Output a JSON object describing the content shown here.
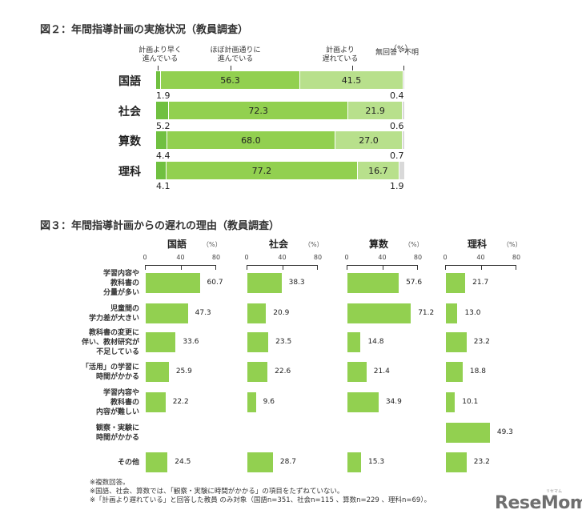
{
  "figure2": {
    "title": "図２：年間指導計画の実施状況（教員調査）",
    "unit": "（%）",
    "legend": [
      {
        "line1": "計画より早く",
        "line2": "進んでいる",
        "color": "#70c040"
      },
      {
        "line1": "ほぼ計画通りに",
        "line2": "進んでいる",
        "color": "#92d050"
      },
      {
        "line1": "計画より",
        "line2": "遅れている",
        "color": "#b8e08c"
      },
      {
        "line1": "",
        "line2": "無回答・不明",
        "color": "#d9d9d9"
      }
    ],
    "rows": [
      {
        "label": "国語",
        "values": [
          1.9,
          56.3,
          41.5,
          0.4
        ],
        "labels": [
          "1.9",
          "56.3",
          "41.5",
          "0.4"
        ]
      },
      {
        "label": "社会",
        "values": [
          5.2,
          72.3,
          21.9,
          0.6
        ],
        "labels": [
          "5.2",
          "72.3",
          "21.9",
          "0.6"
        ]
      },
      {
        "label": "算数",
        "values": [
          4.4,
          68.0,
          27.0,
          0.7
        ],
        "labels": [
          "4.4",
          "68.0",
          "27.0",
          "0.7"
        ]
      },
      {
        "label": "理科",
        "values": [
          4.1,
          77.2,
          16.7,
          1.9
        ],
        "labels": [
          "4.1",
          "77.2",
          "16.7",
          "1.9"
        ]
      }
    ]
  },
  "figure3": {
    "title": "図３：年間指導計画からの遅れの理由（教員調査）",
    "unit": "（%）",
    "ticks": [
      "0",
      "40",
      "80"
    ],
    "categories": [
      {
        "lines": [
          "学習内容や",
          "教科書の",
          "分量が多い"
        ]
      },
      {
        "lines": [
          "児童間の",
          "学力差が大きい"
        ]
      },
      {
        "lines": [
          "教科書の変更に",
          "伴い、教材研究が",
          "不足している"
        ]
      },
      {
        "lines": [
          "「活用」の学習に",
          "時間がかかる"
        ]
      },
      {
        "lines": [
          "学習内容や",
          "教科書の",
          "内容が難しい"
        ]
      },
      {
        "lines": [
          "観察・実験に",
          "時間がかかる"
        ]
      },
      {
        "lines": [
          "その他"
        ]
      }
    ],
    "panels": [
      {
        "title": "国語",
        "values": [
          60.7,
          47.3,
          33.6,
          25.9,
          22.2,
          null,
          24.5
        ],
        "labels": [
          "60.7",
          "47.3",
          "33.6",
          "25.9",
          "22.2",
          "",
          "24.5"
        ]
      },
      {
        "title": "社会",
        "values": [
          38.3,
          20.9,
          23.5,
          22.6,
          9.6,
          null,
          28.7
        ],
        "labels": [
          "38.3",
          "20.9",
          "23.5",
          "22.6",
          "9.6",
          "",
          "28.7"
        ]
      },
      {
        "title": "算数",
        "values": [
          57.6,
          71.2,
          14.8,
          21.4,
          34.9,
          null,
          15.3
        ],
        "labels": [
          "57.6",
          "71.2",
          "14.8",
          "21.4",
          "34.9",
          "",
          "15.3"
        ]
      },
      {
        "title": "理科",
        "values": [
          21.7,
          13.0,
          23.2,
          18.8,
          10.1,
          49.3,
          23.2
        ],
        "labels": [
          "21.7",
          "13.0",
          "23.2",
          "18.8",
          "10.1",
          "49.3",
          "23.2"
        ]
      }
    ],
    "bar_color": "#92d050"
  },
  "notes": [
    "※複数回答。",
    "※国語、社会、算数では、「観察・実験に時間がかかる」の項目をたずねていない。",
    "※「計画より遅れている」と回答した教員 のみ対象（国語n=351、社会n=115 、算数n=229 、理科n=69）。"
  ],
  "logo": {
    "text": "ReseMom",
    "kana": "リセマム"
  },
  "chart_data": [
    {
      "type": "bar",
      "orientation": "horizontal",
      "stacked": true,
      "title": "図２：年間指導計画の実施状況（教員調査）",
      "categories": [
        "国語",
        "社会",
        "算数",
        "理科"
      ],
      "series": [
        {
          "name": "計画より早く進んでいる",
          "values": [
            1.9,
            5.2,
            4.4,
            4.1
          ]
        },
        {
          "name": "ほぼ計画通りに進んでいる",
          "values": [
            56.3,
            72.3,
            68.0,
            77.2
          ]
        },
        {
          "name": "計画より遅れている",
          "values": [
            41.5,
            21.9,
            27.0,
            16.7
          ]
        },
        {
          "name": "無回答・不明",
          "values": [
            0.4,
            0.6,
            0.7,
            1.9
          ]
        }
      ],
      "xlabel": "",
      "ylabel": "",
      "unit": "%",
      "xlim": [
        0,
        100
      ],
      "legend_position": "top"
    },
    {
      "type": "bar",
      "orientation": "horizontal",
      "title": "図３：年間指導計画からの遅れの理由（教員調査）",
      "categories": [
        "学習内容や教科書の分量が多い",
        "児童間の学力差が大きい",
        "教科書の変更に伴い、教材研究が不足している",
        "「活用」の学習に時間がかかる",
        "学習内容や教科書の内容が難しい",
        "観察・実験に時間がかかる",
        "その他"
      ],
      "series": [
        {
          "name": "国語",
          "values": [
            60.7,
            47.3,
            33.6,
            25.9,
            22.2,
            null,
            24.5
          ]
        },
        {
          "name": "社会",
          "values": [
            38.3,
            20.9,
            23.5,
            22.6,
            9.6,
            null,
            28.7
          ]
        },
        {
          "name": "算数",
          "values": [
            57.6,
            71.2,
            14.8,
            21.4,
            34.9,
            null,
            15.3
          ]
        },
        {
          "name": "理科",
          "values": [
            21.7,
            13.0,
            23.2,
            18.8,
            10.1,
            49.3,
            23.2
          ]
        }
      ],
      "xlabel": "",
      "ylabel": "",
      "unit": "%",
      "xlim": [
        0,
        80
      ],
      "xticks": [
        0,
        40,
        80
      ],
      "layout": "small-multiples"
    }
  ]
}
